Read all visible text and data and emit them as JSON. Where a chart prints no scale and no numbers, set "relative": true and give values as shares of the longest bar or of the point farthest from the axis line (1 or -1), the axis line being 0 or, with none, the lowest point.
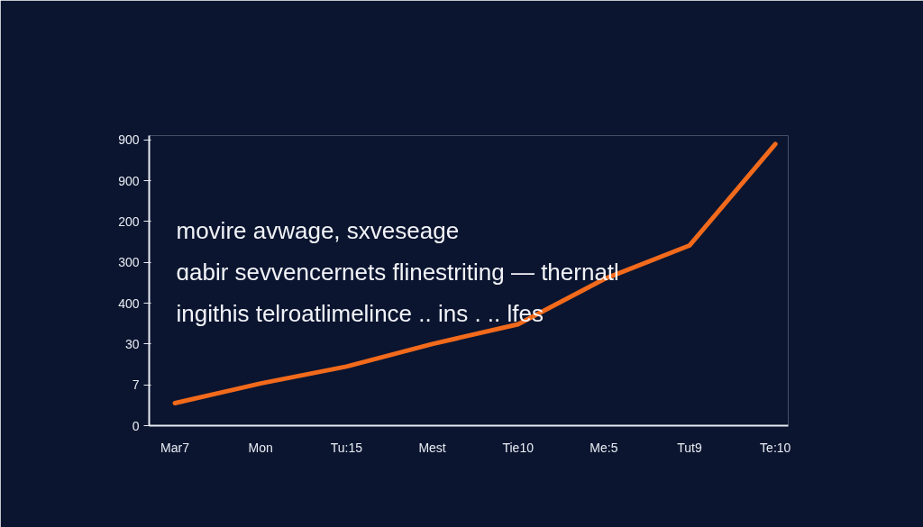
{
  "chart_data": {
    "type": "line",
    "categories": [
      "Mar7",
      "Mon",
      "Tu:15",
      "Mest",
      "Tie10",
      "Me:5",
      "Tut9",
      "Te:10"
    ],
    "series": [
      {
        "color": "#f26a1b",
        "values": [
          0.08,
          0.15,
          0.21,
          0.29,
          0.36,
          0.52,
          0.64,
          1
        ]
      }
    ],
    "relative": true,
    "grid": false,
    "marker": "none",
    "annotations": [
      "movire avwage, sxveseage",
      "ɑabir sevvencernets flinestriting — thernatl",
      "ingithis telroatlimelince .. ins . .. lfes",
      "0",
      "7",
      "30",
      "400",
      "300",
      "200",
      "900",
      "900"
    ]
  }
}
